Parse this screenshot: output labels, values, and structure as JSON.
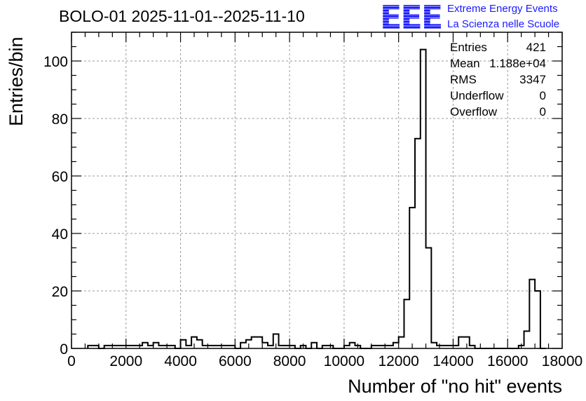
{
  "header": {
    "title": "BOLO-01 2025-11-01--2025-11-10"
  },
  "logo": {
    "letters": "EEE",
    "line1": "Extreme Energy Events",
    "line2": "La Scienza nelle Scuole",
    "color": "#1a1aff"
  },
  "stats_box": {
    "rows": [
      {
        "label": "Entries",
        "value": "421"
      },
      {
        "label": "Mean",
        "value": "1.188e+04"
      },
      {
        "label": "RMS",
        "value": "3347"
      },
      {
        "label": "Underflow",
        "value": "0"
      },
      {
        "label": "Overflow",
        "value": "0"
      }
    ]
  },
  "chart_data": {
    "type": "histogram",
    "title": "BOLO-01 2025-11-01--2025-11-10",
    "xlabel": "Number of \"no hit\" events",
    "ylabel": "Entries/bin",
    "xlim": [
      0,
      18000
    ],
    "ylim": [
      0,
      110
    ],
    "bin_width": 200,
    "grid": true,
    "line_color": "#000000",
    "x_ticks": [
      0,
      2000,
      4000,
      6000,
      8000,
      10000,
      12000,
      14000,
      16000,
      18000
    ],
    "x_tick_labels": [
      "0",
      "2000",
      "4000",
      "6000",
      "8000",
      "10000",
      "12000",
      "14000",
      "16000",
      "18000"
    ],
    "y_ticks": [
      0,
      20,
      40,
      60,
      80,
      100
    ],
    "y_tick_labels": [
      "0",
      "20",
      "40",
      "60",
      "80",
      "100"
    ],
    "bins_x_start": [
      600,
      800,
      1000,
      1200,
      1400,
      1600,
      1800,
      2000,
      2200,
      2400,
      2600,
      2800,
      3000,
      3200,
      3400,
      3600,
      3800,
      4000,
      4200,
      4400,
      4600,
      4800,
      5000,
      5200,
      5400,
      5600,
      5800,
      6000,
      6200,
      6400,
      6600,
      6800,
      7000,
      7200,
      7400,
      7600,
      7800,
      8000,
      8200,
      8400,
      8600,
      8800,
      9000,
      9200,
      9400,
      9600,
      9800,
      10000,
      10200,
      10400,
      10600,
      10800,
      11000,
      11200,
      11400,
      11600,
      11800,
      12000,
      12200,
      12400,
      12600,
      12800,
      13000,
      13200,
      13400,
      13600,
      13800,
      14000,
      14200,
      14400,
      14600,
      14800,
      15000,
      15200,
      15400,
      15600,
      15800,
      16000,
      16200,
      16400,
      16600,
      16800,
      17000,
      17200
    ],
    "counts": [
      1,
      1,
      0,
      1,
      1,
      1,
      1,
      1,
      1,
      1,
      2,
      1,
      2,
      1,
      1,
      1,
      0,
      3,
      1,
      4,
      3,
      1,
      1,
      1,
      1,
      1,
      1,
      0,
      2,
      3,
      4,
      4,
      2,
      1,
      5,
      1,
      1,
      1,
      0,
      1,
      0,
      2,
      0,
      1,
      1,
      0,
      0,
      1,
      2,
      1,
      0,
      0,
      1,
      1,
      1,
      1,
      2,
      4,
      17,
      49,
      73,
      104,
      35,
      2,
      1,
      1,
      1,
      1,
      4,
      4,
      1,
      0,
      0,
      0,
      0,
      0,
      0,
      0,
      0,
      1,
      6,
      24,
      20,
      0
    ]
  }
}
